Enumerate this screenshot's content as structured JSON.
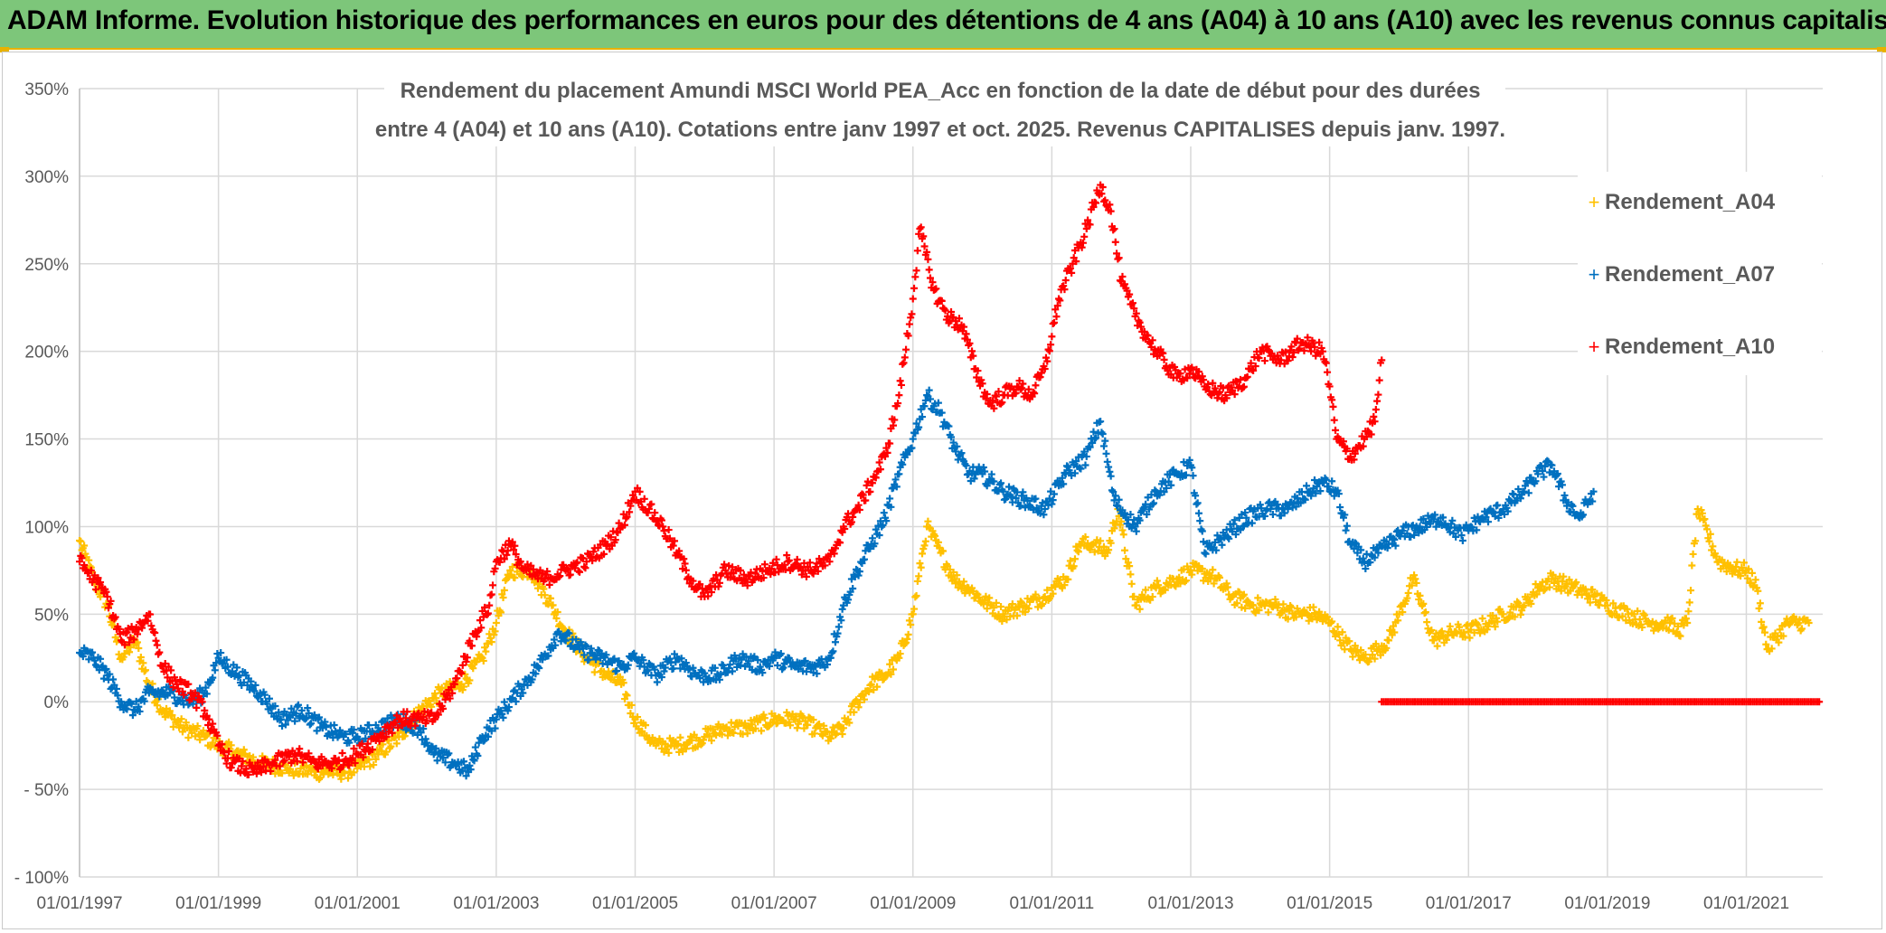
{
  "banner": {
    "title": "ADAM Informe. Evolution historique des performances en euros pour des détentions de 4 ans (A04) à 10 ans (A10) avec les revenus connus capitalisés"
  },
  "colors": {
    "A04": "#ffc000",
    "A07": "#0070c0",
    "A10": "#ff0000",
    "banner": "#7dc67a",
    "grid": "#d9d9d9"
  },
  "chart_data": {
    "type": "scatter",
    "title_lines": [
      "Rendement du placement Amundi MSCI World PEA_Acc en fonction de la date de début pour des durées",
      "entre 4 (A04) et 10 ans (A10). Cotations entre janv 1997 et oct. 2025. Revenus CAPITALISES depuis janv. 1997."
    ],
    "xlabel": "",
    "ylabel": "",
    "xlim": [
      1997.0,
      2022.1
    ],
    "ylim": [
      -100,
      350
    ],
    "y_ticks": [
      -100,
      -50,
      0,
      50,
      100,
      150,
      200,
      250,
      300,
      350
    ],
    "y_tick_labels": [
      "- 100%",
      "- 50%",
      "0%",
      "50%",
      "100%",
      "150%",
      "200%",
      "250%",
      "300%",
      "350%"
    ],
    "x_ticks": [
      1997,
      1999,
      2001,
      2003,
      2005,
      2007,
      2009,
      2011,
      2013,
      2015,
      2017,
      2019,
      2021
    ],
    "x_tick_labels": [
      "01/01/1997",
      "01/01/1999",
      "01/01/2001",
      "01/01/2003",
      "01/01/2005",
      "01/01/2007",
      "01/01/2009",
      "01/01/2011",
      "01/01/2013",
      "01/01/2015",
      "01/01/2017",
      "01/01/2019",
      "01/01/2021"
    ],
    "grid": true,
    "marker": "+",
    "legend_position": "top-right",
    "series": [
      {
        "name": "Rendement_A04",
        "x": [
          1997.0,
          1997.2,
          1997.4,
          1997.6,
          1997.8,
          1998.0,
          1998.2,
          1998.5,
          1998.8,
          1999.0,
          1999.3,
          1999.6,
          2000.0,
          2000.4,
          2000.8,
          2001.0,
          2001.3,
          2001.6,
          2001.9,
          2002.2,
          2002.5,
          2002.8,
          2003.0,
          2003.2,
          2003.5,
          2003.8,
          2004.0,
          2004.3,
          2004.6,
          2004.8,
          2005.0,
          2005.3,
          2005.6,
          2006.0,
          2006.3,
          2006.6,
          2007.0,
          2007.3,
          2007.6,
          2007.8,
          2008.0,
          2008.2,
          2008.4,
          2008.6,
          2008.8,
          2009.0,
          2009.2,
          2009.4,
          2009.6,
          2009.8,
          2010.0,
          2010.3,
          2010.6,
          2010.9,
          2011.0,
          2011.2,
          2011.4,
          2011.6,
          2011.8,
          2011.95,
          2012.2,
          2012.5,
          2012.8,
          2013.0,
          2013.3,
          2013.6,
          2013.9,
          2014.2,
          2014.5,
          2014.8,
          2015.0,
          2015.3,
          2015.5,
          2015.7,
          2015.85,
          2016.0,
          2016.2,
          2016.5,
          2016.8,
          2017.0,
          2017.3,
          2017.5,
          2017.8,
          2018.0,
          2018.2,
          2018.5,
          2018.8,
          2019.0,
          2019.3,
          2019.6,
          2019.9,
          2020.0,
          2020.15,
          2020.3,
          2020.6,
          2020.9,
          2021.0,
          2021.15,
          2021.3,
          2021.6,
          2021.9
        ],
        "values": [
          92,
          70,
          55,
          25,
          35,
          10,
          -5,
          -15,
          -20,
          -25,
          -30,
          -35,
          -38,
          -40,
          -40,
          -38,
          -30,
          -20,
          -5,
          5,
          10,
          25,
          45,
          75,
          75,
          55,
          40,
          25,
          15,
          10,
          -10,
          -25,
          -25,
          -20,
          -15,
          -15,
          -10,
          -10,
          -15,
          -20,
          -15,
          0,
          10,
          15,
          25,
          50,
          100,
          85,
          70,
          65,
          58,
          50,
          55,
          60,
          65,
          70,
          90,
          90,
          85,
          110,
          55,
          65,
          70,
          75,
          72,
          60,
          55,
          55,
          50,
          50,
          45,
          30,
          25,
          30,
          35,
          50,
          70,
          35,
          40,
          40,
          45,
          50,
          55,
          65,
          70,
          65,
          60,
          55,
          50,
          45,
          45,
          40,
          45,
          110,
          80,
          75,
          75,
          65,
          30,
          45,
          45
        ]
      },
      {
        "name": "Rendement_A07",
        "x": [
          1997.0,
          1997.2,
          1997.4,
          1997.6,
          1997.8,
          1998.0,
          1998.3,
          1998.6,
          1998.8,
          1999.0,
          1999.3,
          1999.6,
          1999.9,
          2000.2,
          2000.5,
          2000.8,
          2001.0,
          2001.3,
          2001.6,
          2001.9,
          2002.1,
          2002.4,
          2002.6,
          2002.8,
          2003.0,
          2003.3,
          2003.6,
          2003.9,
          2004.2,
          2004.5,
          2004.8,
          2005.0,
          2005.3,
          2005.6,
          2005.9,
          2006.2,
          2006.5,
          2006.8,
          2007.0,
          2007.3,
          2007.6,
          2007.8,
          2008.0,
          2008.2,
          2008.4,
          2008.6,
          2008.8,
          2009.0,
          2009.2,
          2009.4,
          2009.6,
          2009.8,
          2010.0,
          2010.3,
          2010.6,
          2010.9,
          2011.2,
          2011.5,
          2011.7,
          2011.9,
          2012.2,
          2012.5,
          2012.8,
          2013.0,
          2013.2,
          2013.5,
          2013.8,
          2014.1,
          2014.4,
          2014.7,
          2014.9,
          2015.1,
          2015.3,
          2015.5,
          2015.7,
          2016.0,
          2016.3,
          2016.6,
          2016.9,
          2017.2,
          2017.5,
          2017.8,
          2018.0,
          2018.2,
          2018.4,
          2018.6,
          2018.8
        ],
        "values": [
          28,
          25,
          15,
          0,
          -5,
          5,
          5,
          0,
          5,
          25,
          15,
          5,
          -10,
          -5,
          -15,
          -20,
          -20,
          -15,
          -10,
          -15,
          -30,
          -35,
          -40,
          -20,
          -10,
          5,
          20,
          40,
          30,
          25,
          20,
          25,
          15,
          25,
          15,
          15,
          25,
          20,
          25,
          20,
          20,
          25,
          55,
          75,
          90,
          105,
          130,
          150,
          175,
          165,
          145,
          130,
          130,
          120,
          115,
          110,
          130,
          140,
          160,
          115,
          100,
          120,
          130,
          135,
          85,
          95,
          105,
          110,
          110,
          120,
          125,
          120,
          90,
          80,
          85,
          95,
          100,
          105,
          95,
          105,
          110,
          120,
          130,
          135,
          115,
          105,
          120
        ]
      },
      {
        "name": "Rendement_A10",
        "x": [
          1997.0,
          1997.2,
          1997.4,
          1997.6,
          1997.8,
          1998.0,
          1998.2,
          1998.4,
          1998.6,
          1998.8,
          1999.0,
          1999.2,
          1999.5,
          1999.8,
          2000.1,
          2000.4,
          2000.7,
          2001.0,
          2001.3,
          2001.6,
          2001.9,
          2002.1,
          2002.4,
          2002.7,
          2002.9,
          2003.0,
          2003.2,
          2003.4,
          2003.7,
          2004.0,
          2004.3,
          2004.6,
          2004.8,
          2005.0,
          2005.2,
          2005.4,
          2005.6,
          2005.8,
          2006.0,
          2006.3,
          2006.6,
          2006.9,
          2007.2,
          2007.5,
          2007.8,
          2008.0,
          2008.2,
          2008.4,
          2008.6,
          2008.8,
          2009.0,
          2009.1,
          2009.3,
          2009.5,
          2009.7,
          2009.9,
          2010.1,
          2010.3,
          2010.5,
          2010.7,
          2010.9,
          2011.1,
          2011.3,
          2011.5,
          2011.7,
          2011.85,
          2012.0,
          2012.2,
          2012.5,
          2012.8,
          2013.0,
          2013.2,
          2013.5,
          2013.8,
          2014.0,
          2014.3,
          2014.6,
          2014.9,
          2015.0,
          2015.1,
          2015.3,
          2015.5,
          2015.65,
          2015.75
        ],
        "values": [
          80,
          70,
          60,
          35,
          40,
          50,
          20,
          10,
          5,
          -5,
          -25,
          -35,
          -40,
          -35,
          -30,
          -35,
          -35,
          -30,
          -20,
          -10,
          -10,
          -10,
          10,
          40,
          55,
          80,
          90,
          75,
          70,
          75,
          80,
          90,
          100,
          120,
          110,
          100,
          85,
          70,
          60,
          75,
          70,
          75,
          80,
          75,
          80,
          100,
          110,
          125,
          140,
          175,
          230,
          270,
          235,
          220,
          215,
          190,
          170,
          175,
          180,
          175,
          190,
          230,
          250,
          270,
          295,
          280,
          240,
          220,
          200,
          185,
          190,
          180,
          175,
          185,
          200,
          195,
          205,
          200,
          180,
          150,
          140,
          150,
          160,
          195
        ]
      }
    ]
  }
}
